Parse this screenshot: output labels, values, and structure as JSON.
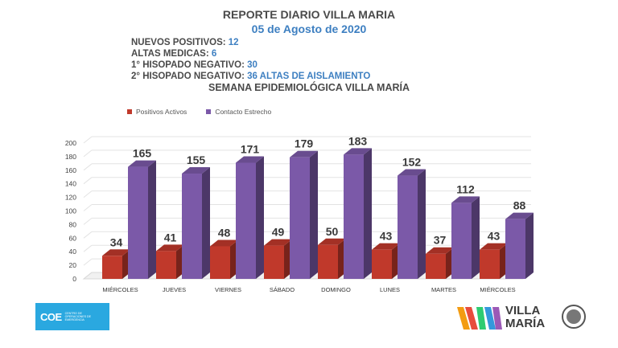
{
  "report": {
    "title": "REPORTE DIARIO VILLA MARIA",
    "date": "05 de Agosto de 2020",
    "stats": [
      {
        "label": "NUEVOS POSITIVOS:",
        "value": "12"
      },
      {
        "label": "ALTAS MEDICAS:",
        "value": "6"
      },
      {
        "label": "1° HISOPADO NEGATIVO:",
        "value": "30"
      },
      {
        "label": "2° HISOPADO NEGATIVO:",
        "value": "36 ALTAS DE AISLAMIENTO"
      }
    ],
    "week_title": "SEMANA EPIDEMIOLÓGICA VILLA MARÍA"
  },
  "logos": {
    "left_mark": "COE",
    "left_small": "CENTRO DE OPERACIONES DE EMERGENCIA",
    "right_text_1": "VILLA",
    "right_text_2": "MARÍA",
    "right_stripe_colors": [
      "#f39c12",
      "#e74c3c",
      "#2ecc71",
      "#3498db"
    ]
  },
  "chart_data": {
    "type": "bar",
    "categories": [
      "MIÉRCOLES",
      "JUEVES",
      "VIERNES",
      "SÁBADO",
      "DOMINGO",
      "LUNES",
      "MARTES",
      "MIÉRCOLES"
    ],
    "series": [
      {
        "name": "Positivos Activos",
        "color": "#c0392b",
        "values": [
          34,
          41,
          48,
          49,
          50,
          43,
          37,
          43
        ]
      },
      {
        "name": "Contacto Estrecho",
        "color": "#7b59a8",
        "values": [
          165,
          155,
          171,
          179,
          183,
          152,
          112,
          88
        ]
      }
    ],
    "ylim": [
      0,
      200
    ],
    "yticks": [
      0,
      20,
      40,
      60,
      80,
      100,
      120,
      140,
      160,
      180,
      200
    ],
    "grid": true,
    "legend": "top-left"
  }
}
